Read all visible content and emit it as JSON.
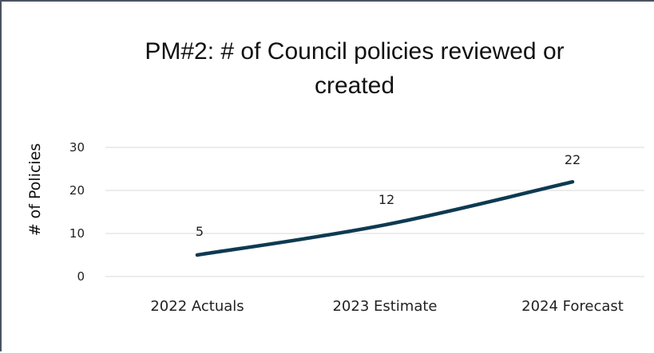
{
  "chart_data": {
    "type": "line",
    "title": "PM#2: # of Council policies reviewed or created",
    "title_lines": [
      "PM#2: # of Council policies reviewed or",
      "created"
    ],
    "xlabel": "",
    "ylabel": "# of Policies",
    "categories": [
      "2022 Actuals",
      "2023 Estimate",
      "2024 Forecast"
    ],
    "series": [
      {
        "values": [
          5,
          12,
          22
        ]
      }
    ],
    "data_labels": [
      "5",
      "12",
      "22"
    ],
    "ylim": [
      0,
      30
    ],
    "yticks": [
      0,
      10,
      20,
      30
    ],
    "ytick_labels": [
      "0",
      "10",
      "20",
      "30"
    ],
    "grid": true,
    "legend": "none",
    "colors": {
      "line": "#0e3a52",
      "grid": "#d9d9d9",
      "frame": "#4a5361"
    }
  }
}
